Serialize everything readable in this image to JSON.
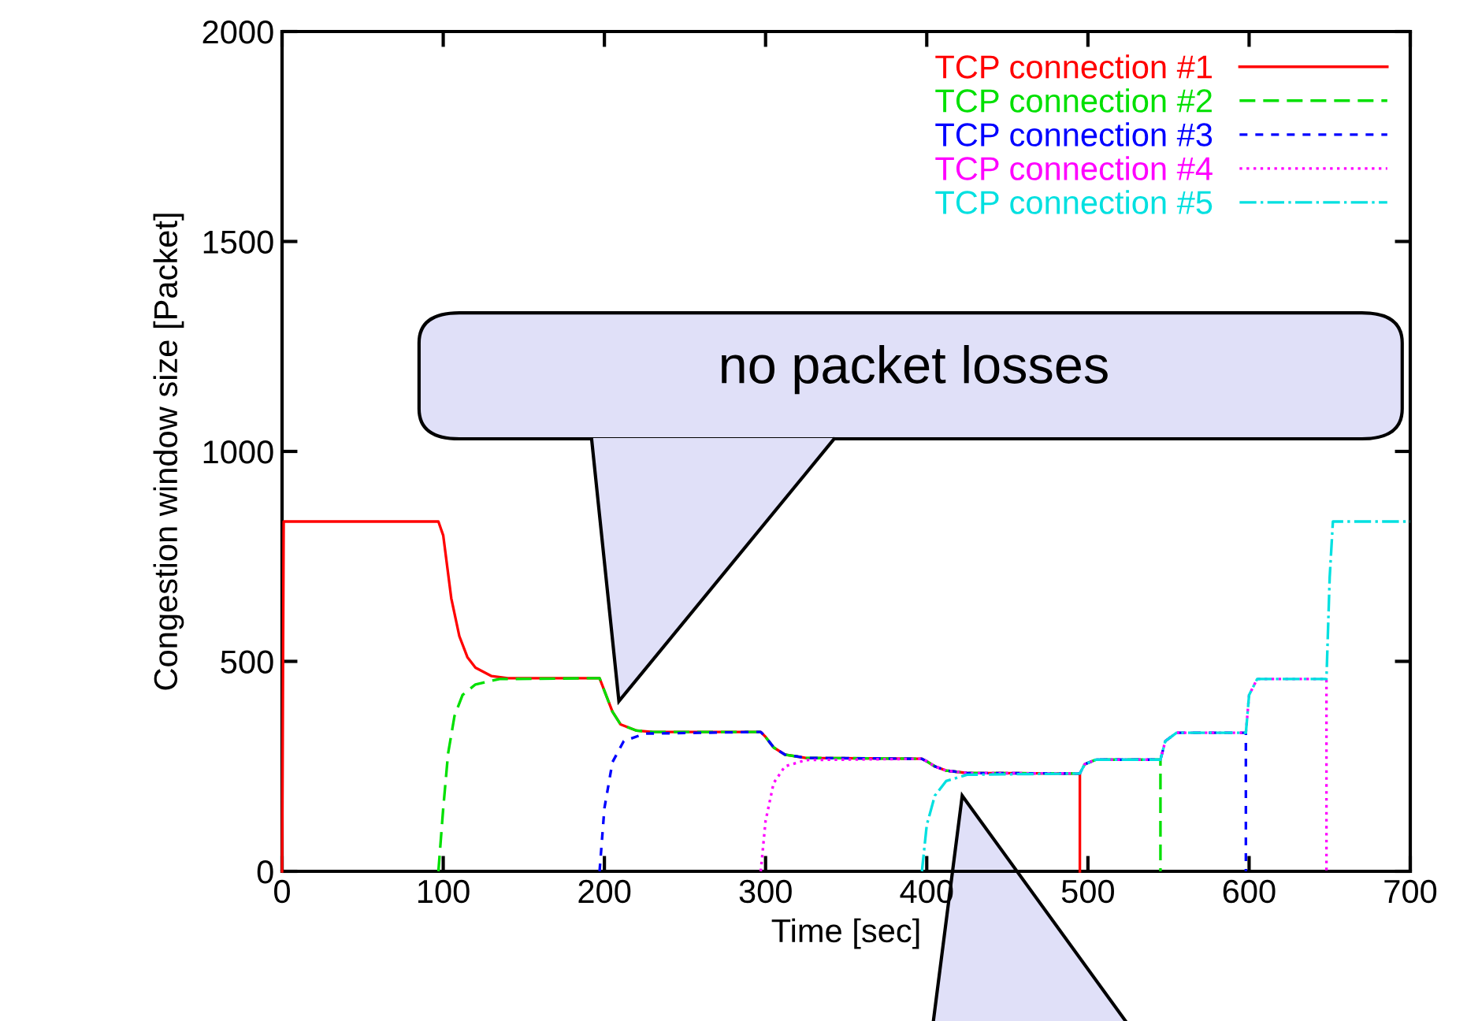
{
  "chart_data": {
    "type": "line",
    "xlabel": "Time [sec]",
    "ylabel": "Congestion window size [Packet]",
    "xlim": [
      0,
      700
    ],
    "ylim": [
      0,
      2000
    ],
    "xticks": [
      0,
      100,
      200,
      300,
      400,
      500,
      600,
      700
    ],
    "yticks": [
      0,
      500,
      1000,
      1500,
      2000
    ],
    "grid": false,
    "legend": "top right",
    "marker": "none",
    "annotations": [
      "no packet losses"
    ],
    "series": [
      {
        "name": "TCP connection #1",
        "color": "#ff0000",
        "line_style": "solid",
        "x": [
          0,
          1,
          97,
          100,
          105,
          110,
          115,
          120,
          130,
          140,
          197,
          200,
          205,
          210,
          220,
          230,
          297,
          300,
          305,
          312,
          325,
          397,
          400,
          405,
          412,
          425,
          495,
          495
        ],
        "values": [
          0,
          833,
          833,
          800,
          650,
          560,
          510,
          485,
          465,
          460,
          460,
          430,
          380,
          350,
          335,
          332,
          332,
          320,
          295,
          278,
          270,
          268,
          262,
          250,
          240,
          234,
          233,
          0
        ]
      },
      {
        "name": "TCP connection #2",
        "color": "#00e000",
        "line_style": "dashed",
        "x": [
          97,
          100,
          103,
          107,
          112,
          120,
          135,
          197,
          200,
          205,
          210,
          220,
          230,
          297,
          300,
          305,
          312,
          325,
          397,
          400,
          405,
          412,
          425,
          495,
          498,
          505,
          545,
          545
        ],
        "values": [
          0,
          150,
          280,
          370,
          420,
          445,
          458,
          460,
          430,
          380,
          350,
          335,
          332,
          332,
          320,
          295,
          278,
          270,
          268,
          262,
          250,
          240,
          234,
          233,
          255,
          266,
          266,
          0
        ]
      },
      {
        "name": "TCP connection #3",
        "color": "#0000ff",
        "line_style": "dashed",
        "x": [
          197,
          200,
          205,
          212,
          225,
          297,
          300,
          305,
          312,
          325,
          397,
          400,
          405,
          412,
          425,
          495,
          498,
          505,
          545,
          548,
          555,
          598,
          598
        ],
        "values": [
          0,
          150,
          260,
          310,
          328,
          332,
          320,
          295,
          278,
          270,
          268,
          262,
          250,
          240,
          234,
          233,
          255,
          266,
          266,
          310,
          330,
          330,
          0
        ]
      },
      {
        "name": "TCP connection #4",
        "color": "#ff00ff",
        "line_style": "dotted",
        "x": [
          297,
          300,
          305,
          312,
          325,
          397,
          400,
          405,
          412,
          425,
          495,
          498,
          505,
          545,
          548,
          555,
          598,
          600,
          605,
          648,
          648
        ],
        "values": [
          0,
          120,
          210,
          250,
          265,
          268,
          262,
          250,
          240,
          234,
          233,
          255,
          266,
          266,
          310,
          330,
          330,
          420,
          458,
          458,
          0
        ]
      },
      {
        "name": "TCP connection #5",
        "color": "#00e0e0",
        "line_style": "dashdot",
        "x": [
          397,
          400,
          405,
          412,
          425,
          495,
          498,
          505,
          545,
          548,
          555,
          598,
          600,
          605,
          648,
          650,
          652,
          700
        ],
        "values": [
          0,
          110,
          180,
          215,
          230,
          233,
          255,
          266,
          266,
          310,
          330,
          330,
          420,
          458,
          458,
          700,
          833,
          833
        ]
      }
    ]
  }
}
